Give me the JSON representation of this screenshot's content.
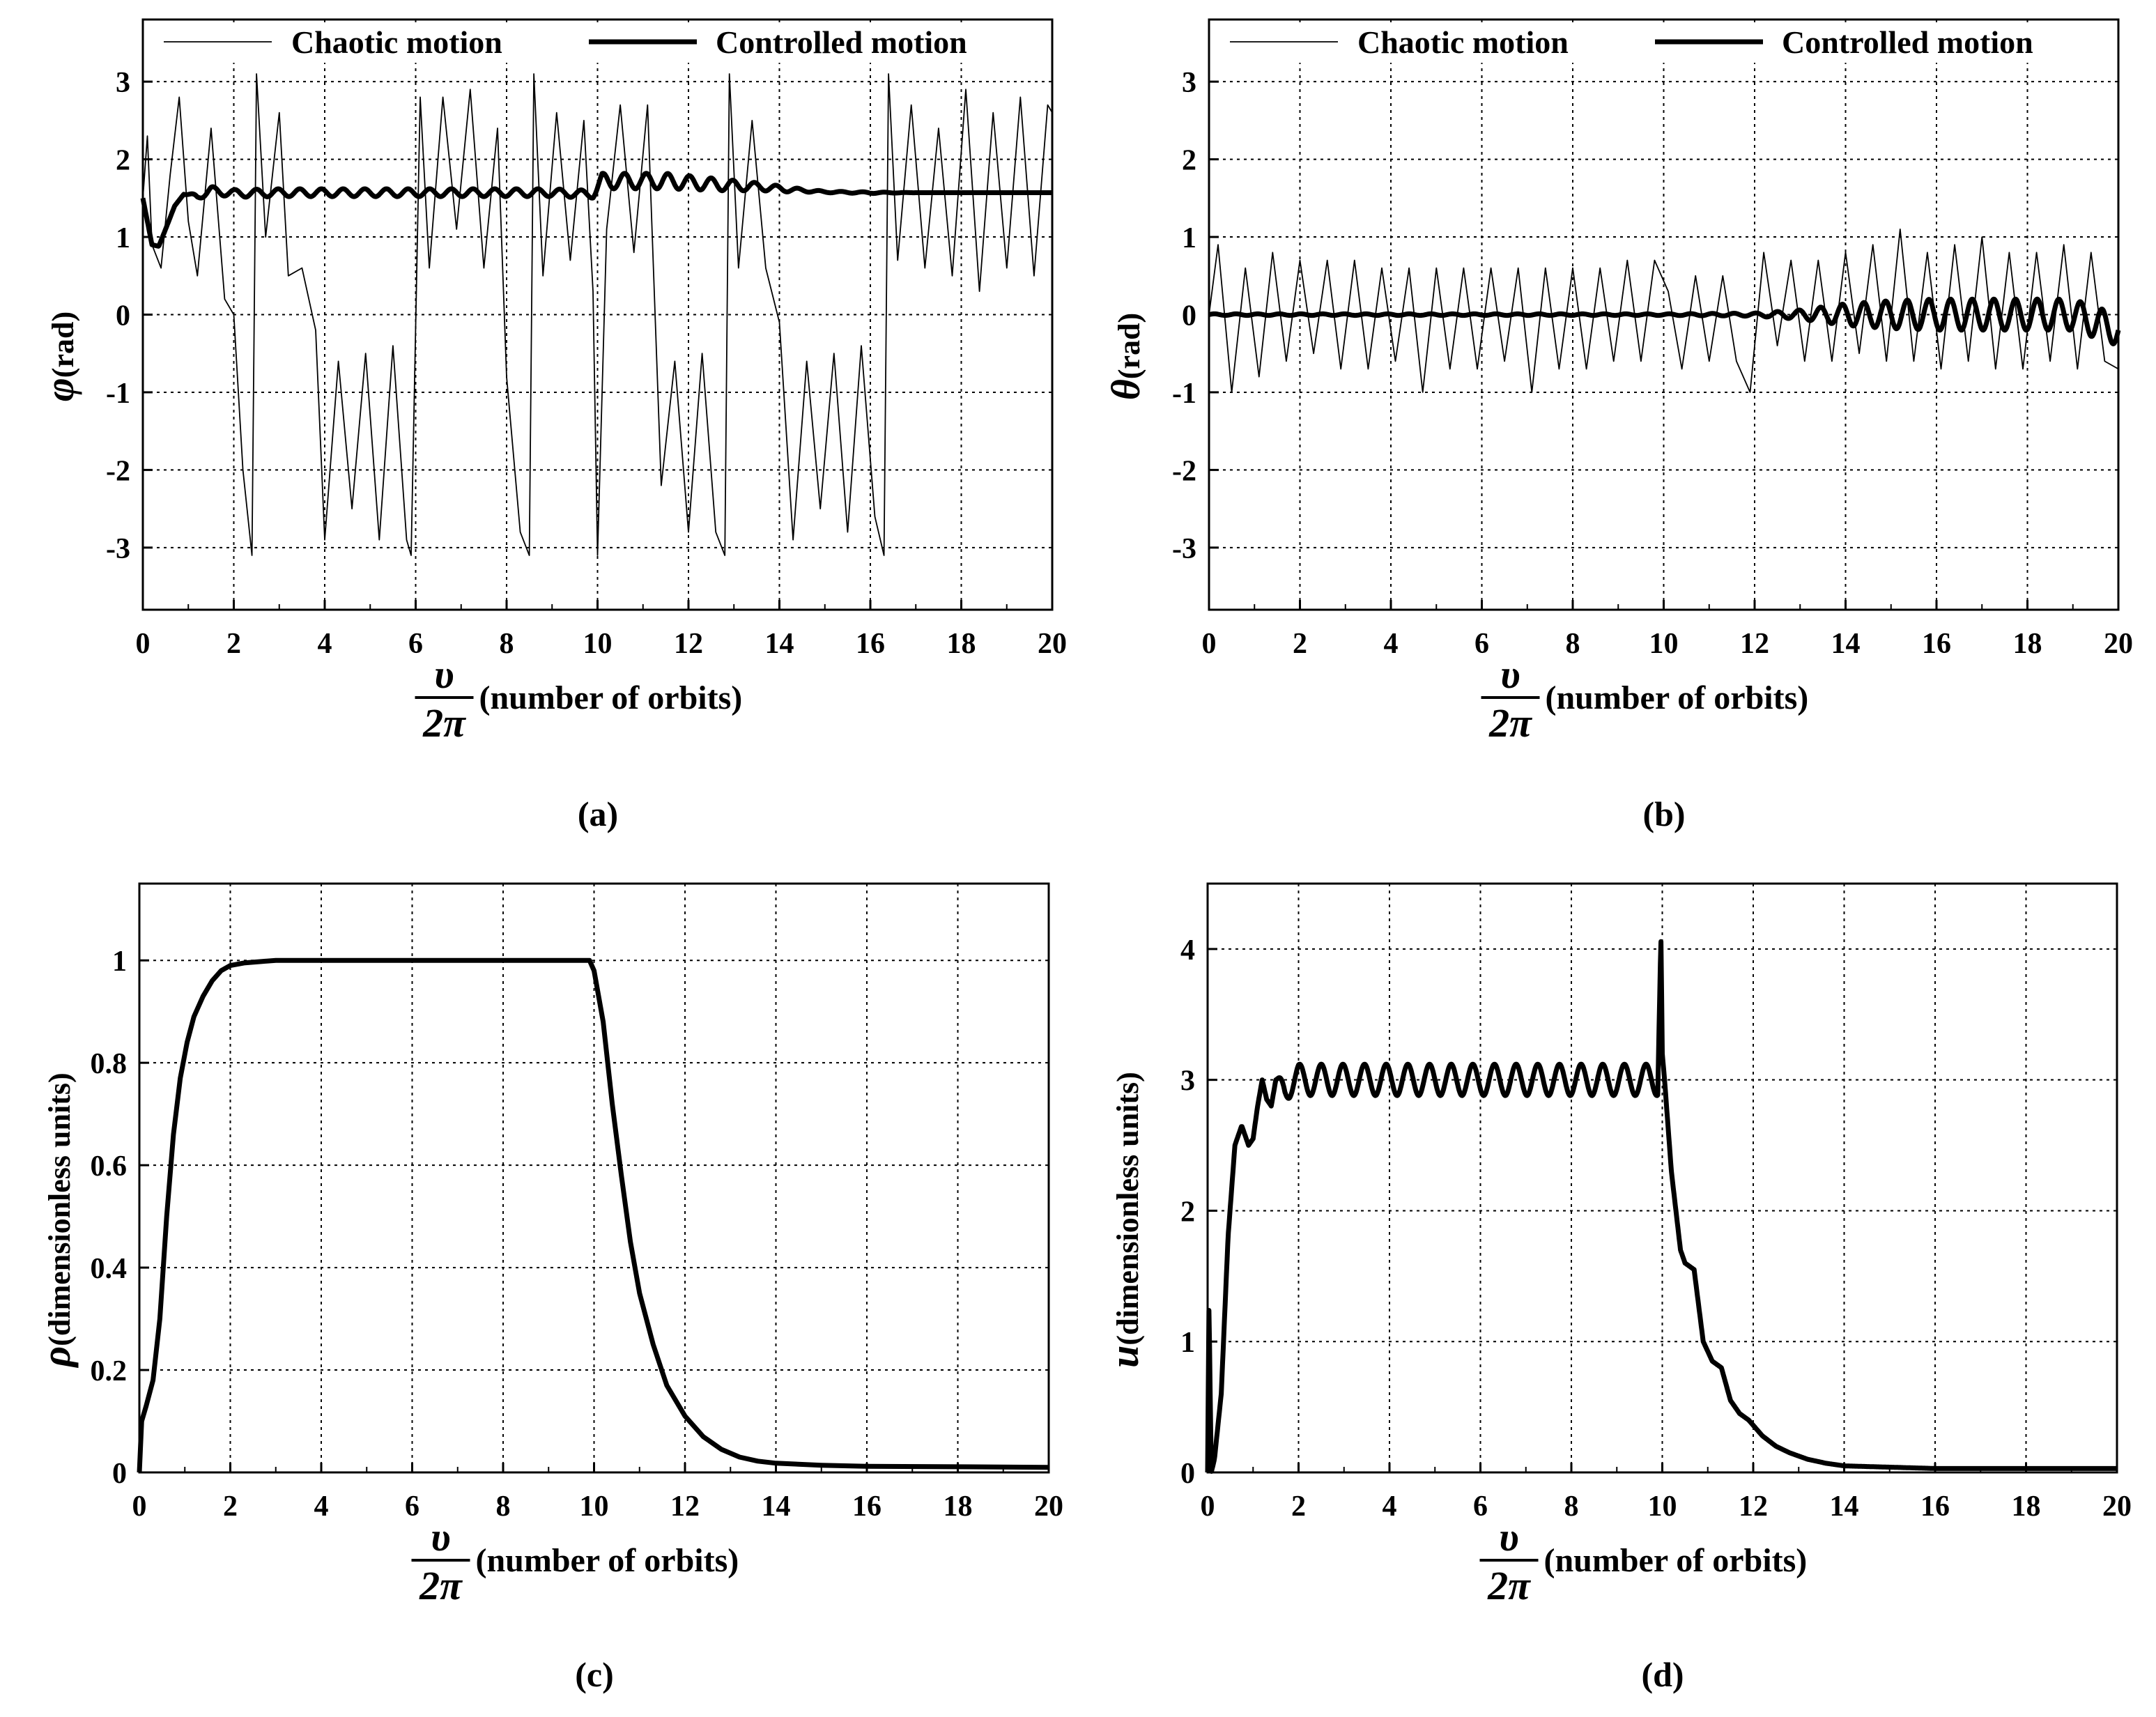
{
  "chart_data": [
    {
      "type": "line",
      "panel_label": "(a)",
      "title": "",
      "xlabel_symbol": "υ",
      "xlabel_denominator": "2π",
      "xlabel": "(number of orbits)",
      "ylabel_symbol": "φ",
      "ylabel": "(rad)",
      "xlim": [
        0,
        20
      ],
      "ylim": [
        -3.8,
        3.8
      ],
      "xticks": [
        0,
        2,
        4,
        6,
        8,
        10,
        12,
        14,
        16,
        18,
        20
      ],
      "xtick_labels": [
        "0",
        "2",
        "4",
        "6",
        "8",
        "10",
        "12",
        "14",
        "16",
        "18",
        "20"
      ],
      "yticks": [
        3,
        2,
        1,
        0,
        -1,
        -2,
        -3
      ],
      "ytick_labels": [
        "3",
        "2",
        "1",
        "0",
        "-1",
        "-2",
        "-3"
      ],
      "legend": [
        "Chaotic motion",
        "Controlled motion"
      ],
      "legend_position": "top",
      "grid": true,
      "series": [
        {
          "name": "Chaotic motion",
          "style": "thin",
          "x": [
            0,
            0.1,
            0.2,
            0.4,
            0.6,
            0.8,
            1.0,
            1.2,
            1.5,
            1.8,
            2.0,
            2.2,
            2.4,
            2.5,
            2.7,
            3.0,
            3.2,
            3.5,
            3.8,
            4.0,
            4.3,
            4.6,
            4.9,
            5.2,
            5.5,
            5.8,
            5.9,
            6.1,
            6.3,
            6.6,
            6.9,
            7.2,
            7.5,
            7.8,
            8.0,
            8.3,
            8.5,
            8.6,
            8.8,
            9.1,
            9.4,
            9.7,
            9.9,
            10.0,
            10.2,
            10.5,
            10.8,
            11.1,
            11.4,
            11.7,
            12.0,
            12.3,
            12.6,
            12.8,
            12.9,
            13.1,
            13.4,
            13.7,
            14.0,
            14.3,
            14.6,
            14.9,
            15.2,
            15.5,
            15.8,
            16.1,
            16.3,
            16.4,
            16.6,
            16.9,
            17.2,
            17.5,
            17.8,
            18.1,
            18.4,
            18.7,
            19.0,
            19.3,
            19.6,
            19.9,
            20.0
          ],
          "values": [
            1.5,
            2.3,
            0.9,
            0.6,
            1.8,
            2.8,
            1.2,
            0.5,
            2.4,
            0.2,
            0.0,
            -2.0,
            -3.1,
            3.1,
            1.0,
            2.6,
            0.5,
            0.6,
            -0.2,
            -2.9,
            -0.6,
            -2.5,
            -0.5,
            -2.9,
            -0.4,
            -2.9,
            -3.1,
            2.8,
            0.6,
            2.8,
            1.1,
            2.9,
            0.6,
            2.4,
            -0.8,
            -2.8,
            -3.1,
            3.1,
            0.5,
            2.6,
            0.7,
            2.5,
            0.3,
            -3.1,
            1.1,
            2.7,
            0.8,
            2.7,
            -2.2,
            -0.6,
            -2.8,
            -0.5,
            -2.8,
            -3.1,
            3.1,
            0.6,
            2.5,
            0.6,
            -0.1,
            -2.9,
            -0.6,
            -2.5,
            -0.5,
            -2.8,
            -0.4,
            -2.6,
            -3.1,
            3.1,
            0.7,
            2.7,
            0.6,
            2.4,
            0.5,
            2.9,
            0.3,
            2.6,
            0.6,
            2.8,
            0.5,
            2.7,
            2.6
          ]
        },
        {
          "name": "Controlled motion",
          "style": "thick",
          "x": [
            0,
            0.1,
            0.2,
            0.35,
            0.5,
            0.7,
            0.9,
            1.2,
            1.5,
            2.0,
            3.0,
            4.0,
            5.0,
            6.0,
            7.0,
            8.0,
            9.0,
            9.9,
            10.1,
            10.5,
            11.0,
            11.5,
            12.0,
            12.5,
            13.0,
            13.5,
            14.0,
            14.5,
            15.0,
            16.0,
            17.0,
            18.0,
            19.0,
            20.0
          ],
          "values": [
            1.5,
            1.2,
            0.9,
            0.88,
            1.1,
            1.4,
            1.55,
            1.52,
            1.6,
            1.56,
            1.57,
            1.57,
            1.57,
            1.57,
            1.57,
            1.57,
            1.57,
            1.55,
            1.72,
            1.72,
            1.72,
            1.72,
            1.7,
            1.68,
            1.66,
            1.65,
            1.62,
            1.6,
            1.58,
            1.57,
            1.57,
            1.57,
            1.57,
            1.57
          ],
          "oscillation_amplitude": [
            0.0,
            0.0,
            0.0,
            0.0,
            0.0,
            0.0,
            0.0,
            0.04,
            0.05,
            0.05,
            0.05,
            0.05,
            0.05,
            0.05,
            0.05,
            0.05,
            0.05,
            0.05,
            0.1,
            0.1,
            0.1,
            0.1,
            0.09,
            0.08,
            0.07,
            0.05,
            0.04,
            0.02,
            0.01,
            0.01,
            0.0,
            0.0,
            0.0,
            0.0
          ]
        }
      ]
    },
    {
      "type": "line",
      "panel_label": "(b)",
      "title": "",
      "xlabel_symbol": "υ",
      "xlabel_denominator": "2π",
      "xlabel": "(number of orbits)",
      "ylabel_symbol": "θ",
      "ylabel": "(rad)",
      "xlim": [
        0,
        20
      ],
      "ylim": [
        -3.8,
        3.8
      ],
      "xticks": [
        0,
        2,
        4,
        6,
        8,
        10,
        12,
        14,
        16,
        18,
        20
      ],
      "xtick_labels": [
        "0",
        "2",
        "4",
        "6",
        "8",
        "10",
        "12",
        "14",
        "16",
        "18",
        "20"
      ],
      "yticks": [
        3,
        2,
        1,
        0,
        -1,
        -2,
        -3
      ],
      "ytick_labels": [
        "3",
        "2",
        "1",
        "0",
        "-1",
        "-2",
        "-3"
      ],
      "legend": [
        "Chaotic motion",
        "Controlled motion"
      ],
      "legend_position": "top",
      "grid": true,
      "series": [
        {
          "name": "Chaotic motion",
          "style": "thin",
          "x": [
            0,
            0.2,
            0.5,
            0.8,
            1.1,
            1.4,
            1.7,
            2.0,
            2.3,
            2.6,
            2.9,
            3.2,
            3.5,
            3.8,
            4.1,
            4.4,
            4.7,
            5.0,
            5.3,
            5.6,
            5.9,
            6.2,
            6.5,
            6.8,
            7.1,
            7.4,
            7.7,
            8.0,
            8.3,
            8.6,
            8.9,
            9.2,
            9.5,
            9.8,
            10.1,
            10.4,
            10.7,
            11.0,
            11.3,
            11.6,
            11.9,
            12.2,
            12.5,
            12.8,
            13.1,
            13.4,
            13.7,
            14.0,
            14.3,
            14.6,
            14.9,
            15.2,
            15.5,
            15.8,
            16.1,
            16.4,
            16.7,
            17.0,
            17.3,
            17.6,
            17.9,
            18.2,
            18.5,
            18.8,
            19.1,
            19.4,
            19.7,
            20.0
          ],
          "values": [
            0.0,
            0.9,
            -1.0,
            0.6,
            -0.8,
            0.8,
            -0.6,
            0.7,
            -0.5,
            0.7,
            -0.7,
            0.7,
            -0.7,
            0.6,
            -0.6,
            0.6,
            -1.0,
            0.6,
            -0.7,
            0.6,
            -0.7,
            0.6,
            -0.6,
            0.6,
            -1.0,
            0.6,
            -0.7,
            0.6,
            -0.7,
            0.6,
            -0.6,
            0.7,
            -0.6,
            0.7,
            0.3,
            -0.7,
            0.5,
            -0.6,
            0.5,
            -0.6,
            -1.0,
            0.8,
            -0.4,
            0.7,
            -0.6,
            0.7,
            -0.6,
            0.8,
            -0.5,
            0.9,
            -0.6,
            1.1,
            -0.6,
            0.8,
            -0.7,
            0.9,
            -0.6,
            1.0,
            -0.7,
            0.8,
            -0.7,
            0.8,
            -0.6,
            0.9,
            -0.7,
            0.8,
            -0.6,
            -0.7
          ]
        },
        {
          "name": "Controlled motion",
          "style": "thick",
          "x": [
            0,
            2,
            4,
            6,
            8,
            10,
            12,
            12.5,
            13,
            13.5,
            14,
            15,
            16,
            17,
            18,
            19,
            20
          ],
          "values": [
            0.0,
            0.0,
            0.0,
            0.0,
            0.0,
            0.0,
            0.0,
            0.0,
            0.0,
            0.0,
            0.0,
            0.0,
            0.0,
            0.0,
            0.0,
            0.0,
            -0.2
          ],
          "oscillation_amplitude": [
            0.01,
            0.01,
            0.01,
            0.01,
            0.01,
            0.01,
            0.02,
            0.04,
            0.06,
            0.1,
            0.14,
            0.18,
            0.2,
            0.2,
            0.2,
            0.2,
            0.2
          ]
        }
      ]
    },
    {
      "type": "line",
      "panel_label": "(c)",
      "title": "",
      "xlabel_symbol": "υ",
      "xlabel_denominator": "2π",
      "xlabel": "(number of orbits)",
      "ylabel_symbol": "ρ",
      "ylabel": "(dimensionless units)",
      "xlim": [
        0,
        20
      ],
      "ylim": [
        0,
        1.15
      ],
      "xticks": [
        0,
        2,
        4,
        6,
        8,
        10,
        12,
        14,
        16,
        18,
        20
      ],
      "xtick_labels": [
        "0",
        "2",
        "4",
        "6",
        "8",
        "10",
        "12",
        "14",
        "16",
        "18",
        "20"
      ],
      "yticks": [
        0,
        0.2,
        0.4,
        0.6,
        0.8,
        1
      ],
      "ytick_labels": [
        "0",
        "0.2",
        "0.4",
        "0.6",
        "0.8",
        "1"
      ],
      "legend": [],
      "grid": true,
      "series": [
        {
          "name": "rho",
          "style": "thick",
          "x": [
            0,
            0.05,
            0.15,
            0.3,
            0.45,
            0.6,
            0.75,
            0.9,
            1.05,
            1.2,
            1.4,
            1.6,
            1.8,
            2.0,
            2.3,
            2.7,
            3.0,
            4.0,
            6.0,
            8.0,
            9.9,
            10.0,
            10.2,
            10.4,
            10.6,
            10.8,
            11.0,
            11.3,
            11.6,
            12.0,
            12.4,
            12.8,
            13.2,
            13.6,
            14.0,
            15.0,
            16.0,
            18.0,
            20.0
          ],
          "values": [
            0.0,
            0.1,
            0.13,
            0.18,
            0.3,
            0.5,
            0.66,
            0.77,
            0.84,
            0.89,
            0.93,
            0.96,
            0.98,
            0.99,
            0.995,
            0.998,
            1.0,
            1.0,
            1.0,
            1.0,
            1.0,
            0.98,
            0.88,
            0.72,
            0.58,
            0.45,
            0.35,
            0.25,
            0.17,
            0.11,
            0.07,
            0.045,
            0.03,
            0.022,
            0.018,
            0.014,
            0.012,
            0.011,
            0.01
          ]
        }
      ]
    },
    {
      "type": "line",
      "panel_label": "(d)",
      "title": "",
      "xlabel_symbol": "υ",
      "xlabel_denominator": "2π",
      "xlabel": "(number of orbits)",
      "ylabel_symbol": "u",
      "ylabel": "(dimensionless units)",
      "xlim": [
        0,
        20
      ],
      "ylim": [
        0,
        4.5
      ],
      "xticks": [
        0,
        2,
        4,
        6,
        8,
        10,
        12,
        14,
        16,
        18,
        20
      ],
      "xtick_labels": [
        "0",
        "2",
        "4",
        "6",
        "8",
        "10",
        "12",
        "14",
        "16",
        "18",
        "20"
      ],
      "yticks": [
        0,
        1,
        2,
        3,
        4
      ],
      "ytick_labels": [
        "0",
        "1",
        "2",
        "3",
        "4"
      ],
      "legend": [],
      "grid": true,
      "series": [
        {
          "name": "u",
          "style": "thick",
          "x": [
            0,
            0.03,
            0.08,
            0.15,
            0.3,
            0.45,
            0.6,
            0.75,
            0.9,
            1.0,
            1.1,
            1.2,
            1.3,
            1.4,
            1.5,
            1.7,
            2.0,
            3.0,
            4.0,
            5.0,
            6.0,
            7.0,
            8.0,
            9.0,
            9.9,
            9.97,
            10.0,
            10.05,
            10.2,
            10.4,
            10.5,
            10.7,
            10.9,
            11.1,
            11.3,
            11.5,
            11.7,
            11.9,
            12.2,
            12.5,
            12.8,
            13.2,
            13.6,
            14.0,
            15.0,
            16.0,
            18.0,
            20.0
          ],
          "values": [
            0.0,
            1.3,
            0.0,
            0.1,
            0.6,
            1.8,
            2.5,
            2.65,
            2.5,
            2.55,
            2.8,
            3.0,
            2.85,
            2.8,
            3.0,
            2.95,
            3.0,
            3.0,
            3.0,
            3.0,
            3.0,
            3.0,
            3.0,
            3.0,
            3.0,
            4.1,
            3.2,
            3.0,
            2.3,
            1.7,
            1.6,
            1.55,
            1.0,
            0.85,
            0.8,
            0.55,
            0.45,
            0.4,
            0.28,
            0.2,
            0.15,
            0.1,
            0.07,
            0.05,
            0.04,
            0.03,
            0.03,
            0.03
          ],
          "oscillation_amplitude": [
            0,
            0,
            0,
            0,
            0,
            0,
            0,
            0,
            0,
            0,
            0,
            0,
            0,
            0,
            0,
            0.1,
            0.12,
            0.12,
            0.12,
            0.12,
            0.12,
            0.12,
            0.12,
            0.12,
            0.12,
            0,
            0,
            0,
            0,
            0,
            0,
            0,
            0,
            0,
            0,
            0,
            0,
            0,
            0,
            0,
            0,
            0,
            0,
            0,
            0,
            0,
            0,
            0
          ]
        }
      ]
    }
  ]
}
